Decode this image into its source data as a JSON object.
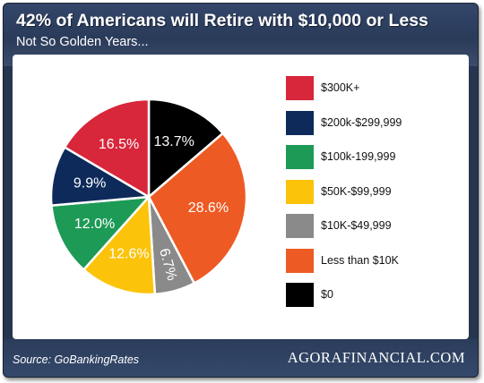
{
  "header": {
    "title": "42% of Americans will Retire with $10,000 or Less",
    "subtitle": "Not So Golden Years..."
  },
  "footer": {
    "source": "Source: GoBankingRates",
    "brand": "AGORAFINANCIAL.COM"
  },
  "chart_data": {
    "type": "pie",
    "slices": [
      {
        "label": "$0",
        "value": 13.7,
        "display": "13.7%",
        "color": "#000000"
      },
      {
        "label": "Less than $10K",
        "value": 28.6,
        "display": "28.6%",
        "color": "#ee5a24"
      },
      {
        "label": "$10K-$49,999",
        "value": 6.7,
        "display": "6.7%",
        "color": "#8a8a8a"
      },
      {
        "label": "$50K-$99,999",
        "value": 12.6,
        "display": "12.6%",
        "color": "#fcc30b"
      },
      {
        "label": "$100k-199,999",
        "value": 12.0,
        "display": "12.0%",
        "color": "#1e9a57"
      },
      {
        "label": "$200k-$299,999",
        "value": 9.9,
        "display": "9.9%",
        "color": "#0d2a5a"
      },
      {
        "label": "$300K+",
        "value": 16.5,
        "display": "16.5%",
        "color": "#d8263a"
      }
    ],
    "legend": [
      {
        "label": "$300K+",
        "color": "#d8263a"
      },
      {
        "label": "$200k-$299,999",
        "color": "#0d2a5a"
      },
      {
        "label": "$100k-199,999",
        "color": "#1e9a57"
      },
      {
        "label": "$50K-$99,999",
        "color": "#fcc30b"
      },
      {
        "label": "$10K-$49,999",
        "color": "#8a8a8a"
      },
      {
        "label": "Less than $10K",
        "color": "#ee5a24"
      },
      {
        "label": "$0",
        "color": "#000000"
      }
    ],
    "legend_position": "right"
  }
}
